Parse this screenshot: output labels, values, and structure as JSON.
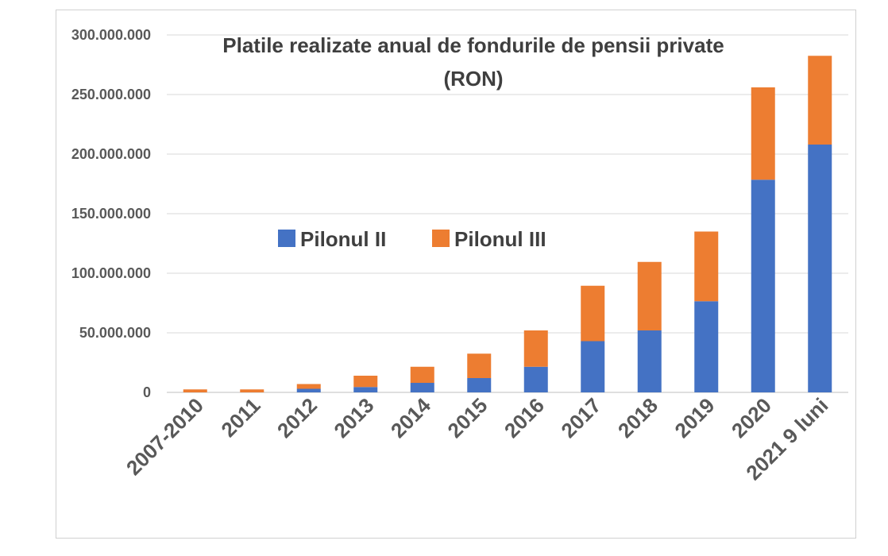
{
  "chart_data": {
    "type": "bar",
    "stacked": true,
    "title_lines": [
      "Platile realizate anual de fondurile de pensii private",
      "(RON)"
    ],
    "categories": [
      "2007-2010",
      "2011",
      "2012",
      "2013",
      "2014",
      "2015",
      "2016",
      "2017",
      "2018",
      "2019",
      "2020",
      "2021 9 luni"
    ],
    "series": [
      {
        "name": "Pilonul II",
        "color": "#4472C4",
        "values": [
          0,
          0,
          3000000,
          4500000,
          8000000,
          12000000,
          21500000,
          43000000,
          52000000,
          76500000,
          178500000,
          208000000
        ]
      },
      {
        "name": "Pilonul III",
        "color": "#ED7D31",
        "values": [
          2500000,
          2500000,
          4000000,
          9500000,
          13500000,
          20500000,
          30500000,
          46500000,
          57500000,
          58500000,
          77500000,
          74500000
        ]
      }
    ],
    "ylim": [
      0,
      300000000
    ],
    "yticks": [
      0,
      50000000,
      100000000,
      150000000,
      200000000,
      250000000,
      300000000
    ],
    "ytick_labels": [
      "0",
      "50.000.000",
      "100.000.000",
      "150.000.000",
      "200.000.000",
      "250.000.000",
      "300.000.000"
    ],
    "grid": true,
    "legend_position": "center-left"
  }
}
